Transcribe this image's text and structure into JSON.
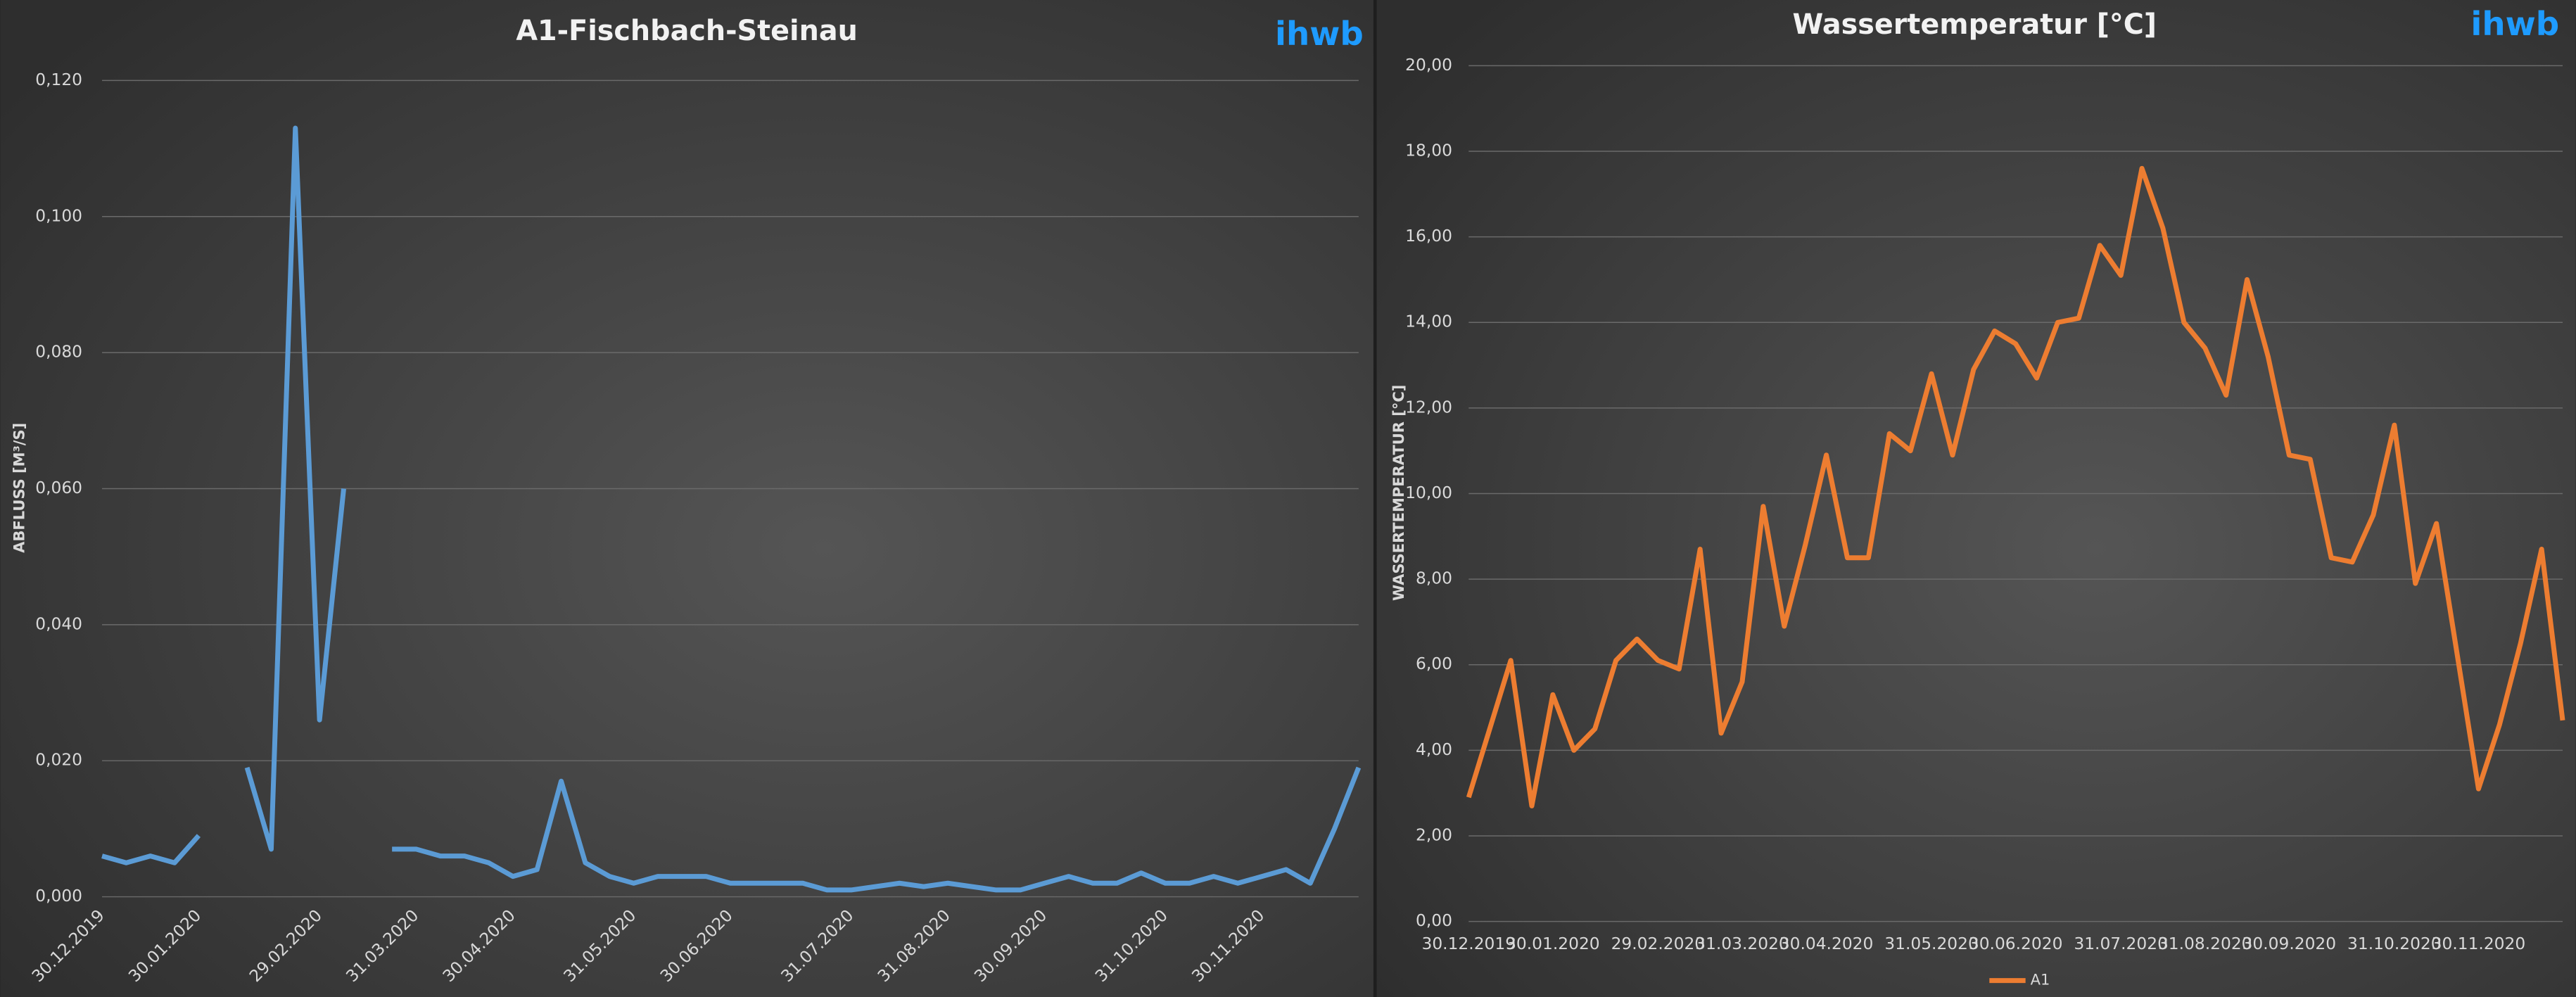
{
  "chart_data": [
    {
      "type": "line",
      "title": "A1-Fischbach-Steinau",
      "logo": "ihwb",
      "ylabel": "ABFLUSS [M³/S]",
      "color": "#5b9bd5",
      "categories": [
        "30.12.2019",
        null,
        null,
        null,
        "30.01.2020",
        null,
        null,
        null,
        null,
        "29.02.2020",
        null,
        null,
        null,
        "31.03.2020",
        null,
        null,
        null,
        "30.04.2020",
        null,
        null,
        null,
        null,
        "31.05.2020",
        null,
        null,
        null,
        "30.06.2020",
        null,
        null,
        null,
        null,
        "31.07.2020",
        null,
        null,
        null,
        "31.08.2020",
        null,
        null,
        null,
        "30.09.2020",
        null,
        null,
        null,
        null,
        "31.10.2020",
        null,
        null,
        null,
        "30.11.2020",
        null,
        null,
        null,
        null
      ],
      "values": [
        0.006,
        0.005,
        0.006,
        0.005,
        0.009,
        null,
        0.019,
        0.007,
        0.113,
        0.026,
        0.06,
        null,
        0.007,
        0.007,
        0.006,
        0.006,
        0.005,
        0.003,
        0.004,
        0.017,
        0.005,
        0.003,
        0.002,
        0.003,
        0.003,
        0.003,
        0.002,
        0.002,
        0.002,
        0.002,
        0.001,
        0.001,
        0.0015,
        0.002,
        0.0015,
        0.002,
        0.0015,
        0.001,
        0.001,
        0.002,
        0.003,
        0.002,
        0.002,
        0.0035,
        0.002,
        0.002,
        0.003,
        0.002,
        0.003,
        0.004,
        0.002,
        0.01,
        0.019
      ],
      "ylim": [
        0,
        0.12
      ],
      "yticks": [
        {
          "value": 0,
          "label": "0,000"
        },
        {
          "value": 0.02,
          "label": "0,020"
        },
        {
          "value": 0.04,
          "label": "0,040"
        },
        {
          "value": 0.06,
          "label": "0,060"
        },
        {
          "value": 0.08,
          "label": "0,080"
        },
        {
          "value": 0.1,
          "label": "0,100"
        },
        {
          "value": 0.12,
          "label": "0,120"
        }
      ],
      "grid": true
    },
    {
      "type": "line",
      "title": "Wassertemperatur [°C]",
      "logo": "ihwb",
      "ylabel": "WASSERTEMPERATUR [°C]",
      "categories": [
        "30.12.2019",
        null,
        null,
        null,
        "30.01.2020",
        null,
        null,
        null,
        null,
        "29.02.2020",
        null,
        null,
        null,
        "31.03.2020",
        null,
        null,
        null,
        "30.04.2020",
        null,
        null,
        null,
        null,
        "31.05.2020",
        null,
        null,
        null,
        "30.06.2020",
        null,
        null,
        null,
        null,
        "31.07.2020",
        null,
        null,
        null,
        "31.08.2020",
        null,
        null,
        null,
        "30.09.2020",
        null,
        null,
        null,
        null,
        "31.10.2020",
        null,
        null,
        null,
        "30.11.2020",
        null,
        null,
        null,
        null
      ],
      "series": [
        {
          "name": "A1",
          "color": "#ed7d31",
          "values": [
            2.9,
            4.5,
            6.1,
            2.7,
            5.3,
            4.0,
            4.5,
            6.1,
            6.6,
            6.1,
            5.9,
            8.7,
            4.4,
            5.6,
            9.7,
            6.9,
            8.8,
            10.9,
            8.5,
            8.5,
            11.4,
            11.0,
            12.8,
            10.9,
            12.9,
            13.8,
            13.5,
            12.7,
            14.0,
            14.1,
            15.8,
            15.1,
            17.6,
            16.2,
            14.0,
            13.4,
            12.3,
            15.0,
            13.2,
            10.9,
            10.8,
            8.5,
            8.4,
            9.5,
            11.6,
            7.9,
            9.3,
            6.2,
            3.1,
            4.6,
            6.5,
            8.7,
            4.7
          ]
        }
      ],
      "ylim": [
        0,
        20
      ],
      "yticks": [
        {
          "value": 0,
          "label": "0,00"
        },
        {
          "value": 2,
          "label": "2,00"
        },
        {
          "value": 4,
          "label": "4,00"
        },
        {
          "value": 6,
          "label": "6,00"
        },
        {
          "value": 8,
          "label": "8,00"
        },
        {
          "value": 10,
          "label": "10,00"
        },
        {
          "value": 12,
          "label": "12,00"
        },
        {
          "value": 14,
          "label": "14,00"
        },
        {
          "value": 16,
          "label": "16,00"
        },
        {
          "value": 18,
          "label": "18,00"
        },
        {
          "value": 20,
          "label": "20,00"
        }
      ],
      "grid": true,
      "legend": "bottom"
    }
  ]
}
